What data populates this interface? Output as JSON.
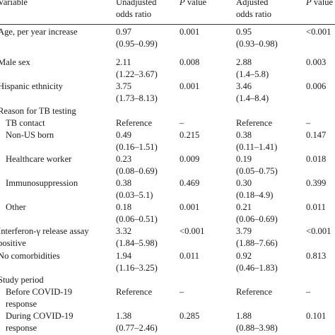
{
  "table": {
    "headers": {
      "variable": "Variable",
      "unadjusted": [
        "Unadjusted",
        "odds ratio"
      ],
      "p_unadjusted_italic": "P",
      "p_unadjusted_rest": " value",
      "adjusted": [
        "Adjusted",
        "odds ratio"
      ],
      "p_adjusted_italic": "P",
      "p_adjusted_rest": " value"
    },
    "rows": [
      {
        "label": [
          "Age, per year increase"
        ],
        "indent": false,
        "or1": "0.97",
        "ci1": "(0.95–0.99)",
        "p1": "0.001",
        "or2": "0.95",
        "ci2": "(0.93–0.98)",
        "p2": "<0.001"
      },
      {
        "label": [
          "Male sex"
        ],
        "indent": false,
        "or1": "2.11",
        "ci1": "(1.22–3.67)",
        "p1": "0.008",
        "or2": "2.88",
        "ci2": "(1.4–5.8)",
        "p2": "0.003"
      },
      {
        "label": [
          "Hispanic ethnicity"
        ],
        "indent": false,
        "or1": "3.75",
        "ci1": "(1.73–8.13)",
        "p1": "0.001",
        "or2": "3.46",
        "ci2": "(1.4–8.4)",
        "p2": "0.006"
      },
      {
        "label": [
          "Reason for TB testing"
        ],
        "indent": false,
        "or1": "",
        "ci1": "",
        "p1": "",
        "or2": "",
        "ci2": "",
        "p2": ""
      },
      {
        "label": [
          "TB contact"
        ],
        "indent": true,
        "or1": "Reference",
        "ci1": "",
        "p1": "–",
        "or2": "Reference",
        "ci2": "",
        "p2": "–"
      },
      {
        "label": [
          "Non-US born"
        ],
        "indent": true,
        "or1": "0.49",
        "ci1": "(0.16–1.51)",
        "p1": "0.215",
        "or2": "0.38",
        "ci2": "(0.11–1.41)",
        "p2": "0.147"
      },
      {
        "label": [
          "Healthcare worker"
        ],
        "indent": true,
        "or1": "0.23",
        "ci1": "(0.08–0.69)",
        "p1": "0.009",
        "or2": "0.19",
        "ci2": "(0.05–0.75)",
        "p2": "0.018"
      },
      {
        "label": [
          "Immunosuppression"
        ],
        "indent": true,
        "or1": "0.38",
        "ci1": "(0.03–5.1)",
        "p1": "0.469",
        "or2": "0.30",
        "ci2": "(0.18–4.9)",
        "p2": "0.399"
      },
      {
        "label": [
          "Other"
        ],
        "indent": true,
        "or1": "0.18",
        "ci1": "(0.06–0.51)",
        "p1": "0.001",
        "or2": "0.21",
        "ci2": "(0.06–0.69)",
        "p2": "0.011"
      },
      {
        "label": [
          "Interferon-γ release assay",
          "positive"
        ],
        "indent": false,
        "or1": "3.32",
        "ci1": "(1.84–5.98)",
        "p1": "<0.001",
        "or2": "3.79",
        "ci2": "(1.88–7.66)",
        "p2": "<0.001"
      },
      {
        "label": [
          "No comorbidities"
        ],
        "indent": false,
        "or1": "1.94",
        "ci1": "(1.16–3.25)",
        "p1": "0.011",
        "or2": "0.92",
        "ci2": "(0.46–1.83)",
        "p2": "0.813"
      },
      {
        "label": [
          "Study period"
        ],
        "indent": false,
        "or1": "",
        "ci1": "",
        "p1": "",
        "or2": "",
        "ci2": "",
        "p2": ""
      },
      {
        "label": [
          "Before COVID-19",
          "response"
        ],
        "indent": true,
        "or1": "Reference",
        "ci1": "",
        "p1": "–",
        "or2": "Reference",
        "ci2": "",
        "p2": "–"
      },
      {
        "label": [
          "During COVID-19",
          "response"
        ],
        "indent": true,
        "or1": "1.38",
        "ci1": "(0.77–2.46)",
        "p1": "0.285",
        "or2": "1.88",
        "ci2": "(0.88–3.98)",
        "p2": "0.101"
      }
    ]
  }
}
